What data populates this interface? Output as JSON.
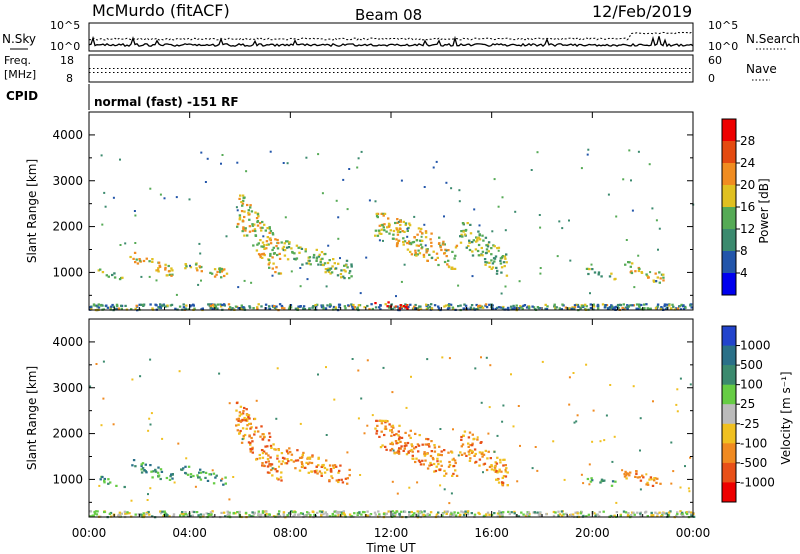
{
  "header": {
    "station": "McMurdo (fitACF)",
    "beam": "Beam 08",
    "date": "12/Feb/2019"
  },
  "noise_panel": {
    "left_label": "N.Sky",
    "right_label": "N.Search",
    "left_ticks": [
      "10^5",
      "10^0"
    ],
    "right_ticks": [
      "10^5",
      "10^0"
    ]
  },
  "freq_panel": {
    "left_label_1": "Freq.",
    "left_label_2": "[MHz]",
    "right_label": "Nave",
    "left_ticks": [
      "18",
      "8"
    ],
    "right_ticks": [
      "60",
      "0"
    ]
  },
  "cpid": {
    "label": "CPID",
    "text": "normal (fast) -151 RF"
  },
  "chart_data": [
    {
      "type": "heatmap",
      "name": "power",
      "ylabel": "Slant Range [km]",
      "xlabel": "",
      "x_ticks": [
        "00:00",
        "04:00",
        "08:00",
        "12:00",
        "16:00",
        "20:00",
        "00:00"
      ],
      "y_ticks": [
        1000,
        2000,
        3000,
        4000
      ],
      "xlim_hours": [
        0,
        24
      ],
      "ylim_km": [
        180,
        4500
      ],
      "colorbar": {
        "label": "Power [dB]",
        "ticks": [
          "4",
          "8",
          "12",
          "16",
          "20",
          "24",
          "28"
        ],
        "colors": [
          "#0000ee",
          "#2255aa",
          "#3b8a6e",
          "#55aa55",
          "#e0c020",
          "#f08c20",
          "#e44a10",
          "#ee0000"
        ]
      },
      "echo_bands": [
        {
          "h": [
            0.0,
            24.0
          ],
          "r": [
            200,
            330
          ],
          "level": "mixed-ground"
        },
        {
          "h": [
            0.3,
            1.4
          ],
          "r": [
            850,
            1100
          ],
          "level": 3
        },
        {
          "h": [
            1.6,
            3.3
          ],
          "r": [
            950,
            1450
          ],
          "level": 4
        },
        {
          "h": [
            3.6,
            5.5
          ],
          "r": [
            900,
            1300
          ],
          "level": 4
        },
        {
          "h": [
            5.8,
            7.6
          ],
          "r": [
            1000,
            2700
          ],
          "level": 4
        },
        {
          "h": [
            7.6,
            10.4
          ],
          "r": [
            900,
            1700
          ],
          "level": 3
        },
        {
          "h": [
            11.3,
            14.6
          ],
          "r": [
            1100,
            2300
          ],
          "level": 4
        },
        {
          "h": [
            14.7,
            16.6
          ],
          "r": [
            900,
            2100
          ],
          "level": 3
        },
        {
          "h": [
            19.7,
            21.0
          ],
          "r": [
            850,
            1100
          ],
          "level": 3
        },
        {
          "h": [
            21.2,
            22.8
          ],
          "r": [
            800,
            1250
          ],
          "level": 4
        },
        {
          "h": [
            11.2,
            12.8
          ],
          "r": [
            220,
            400
          ],
          "level": 7
        }
      ]
    },
    {
      "type": "heatmap",
      "name": "velocity",
      "ylabel": "Slant Range [km]",
      "xlabel": "Time UT",
      "x_ticks": [
        "00:00",
        "04:00",
        "08:00",
        "12:00",
        "16:00",
        "20:00",
        "00:00"
      ],
      "y_ticks": [
        1000,
        2000,
        3000,
        4000
      ],
      "xlim_hours": [
        0,
        24
      ],
      "ylim_km": [
        180,
        4500
      ],
      "colorbar": {
        "label": "Velocity [m s⁻¹]",
        "ticks": [
          "1000",
          "500",
          "100",
          "25",
          "-25",
          "-100",
          "-500",
          "-1000"
        ],
        "colors": [
          "#2244cc",
          "#2a7088",
          "#3b8a6e",
          "#66cc44",
          "#bbbbbb",
          "#f0c020",
          "#f08a20",
          "#e85018",
          "#ee0000"
        ]
      },
      "echo_bands": [
        {
          "h": [
            0.0,
            24.0
          ],
          "r": [
            200,
            330
          ],
          "level": "mixed-ground"
        },
        {
          "h": [
            0.3,
            1.4
          ],
          "r": [
            850,
            1100
          ],
          "level": 2
        },
        {
          "h": [
            1.6,
            3.3
          ],
          "r": [
            950,
            1450
          ],
          "level": 2
        },
        {
          "h": [
            3.6,
            5.5
          ],
          "r": [
            900,
            1300
          ],
          "level": 2
        },
        {
          "h": [
            5.8,
            7.6
          ],
          "r": [
            1000,
            2700
          ],
          "level": 6
        },
        {
          "h": [
            7.6,
            10.4
          ],
          "r": [
            900,
            1700
          ],
          "level": 6
        },
        {
          "h": [
            11.3,
            14.6
          ],
          "r": [
            1100,
            2300
          ],
          "level": 6
        },
        {
          "h": [
            14.7,
            16.6
          ],
          "r": [
            900,
            2100
          ],
          "level": 6
        },
        {
          "h": [
            19.7,
            21.0
          ],
          "r": [
            850,
            1100
          ],
          "level": 2
        },
        {
          "h": [
            21.2,
            22.8
          ],
          "r": [
            800,
            1250
          ],
          "level": 6
        }
      ]
    }
  ]
}
